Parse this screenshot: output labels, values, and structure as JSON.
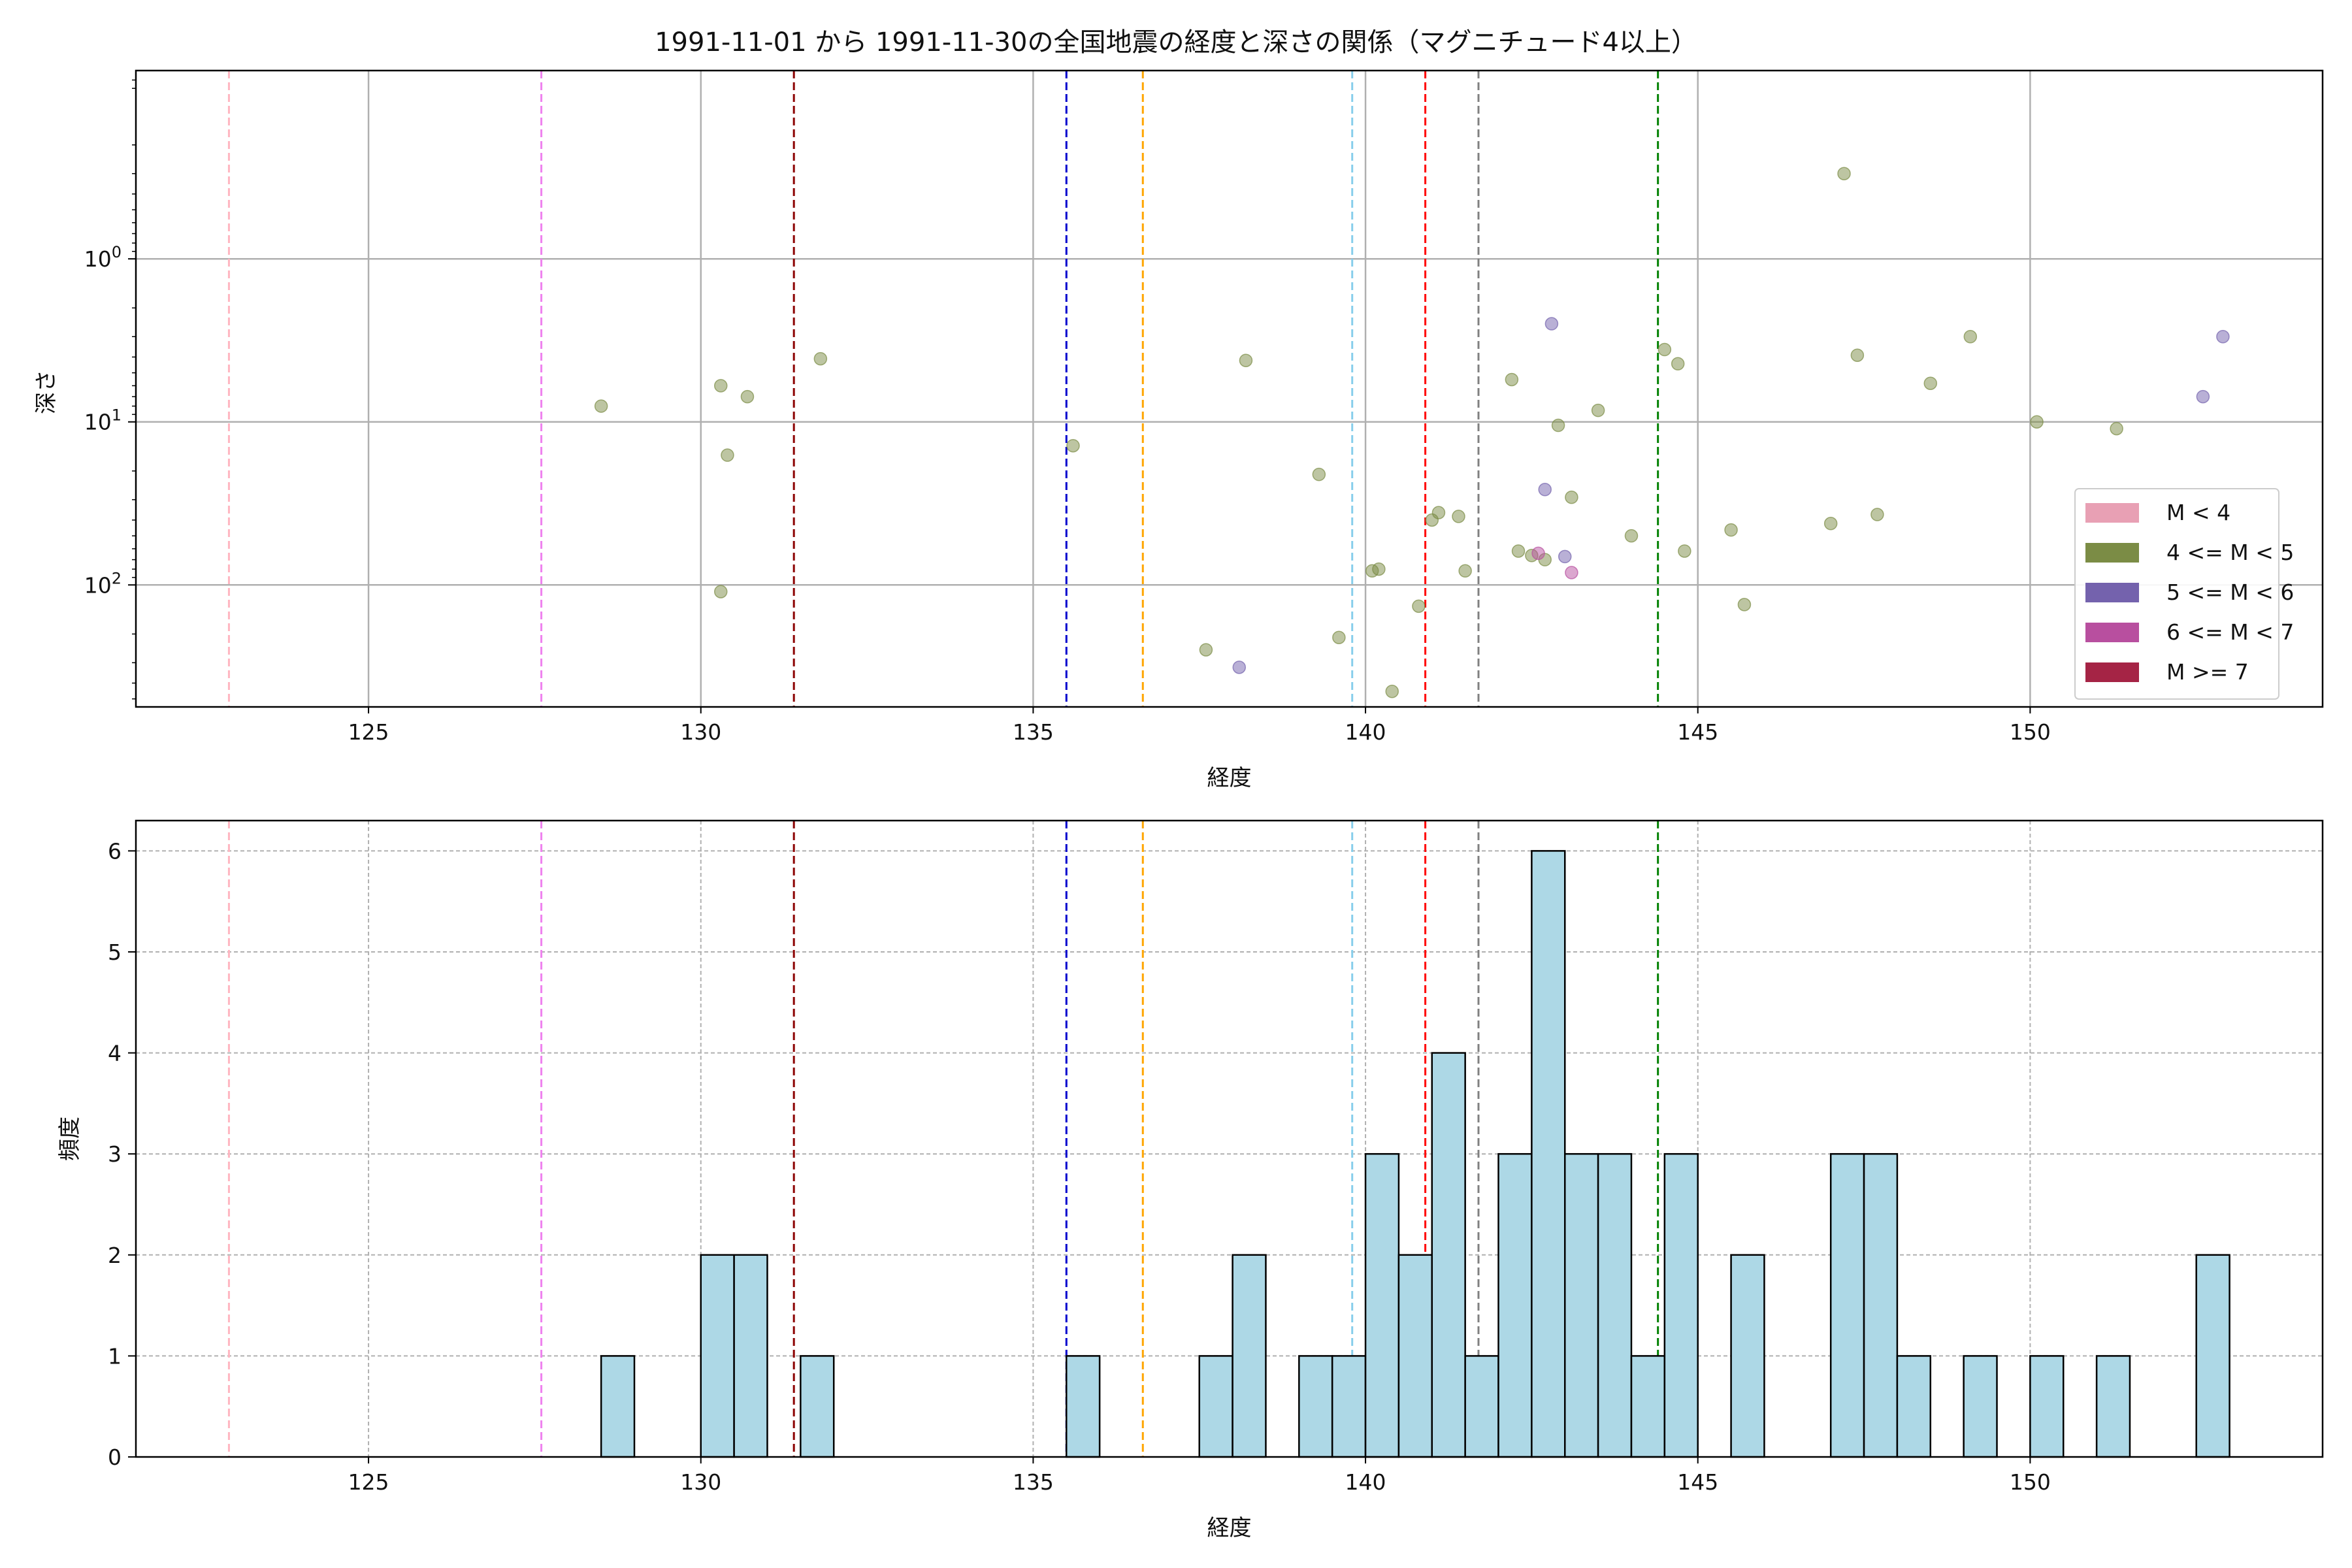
{
  "figure": {
    "title": "1991-11-01 から 1991-11-30の全国地震の経度と深さの関係（マグニチュード4以上）"
  },
  "chart_data": [
    {
      "type": "scatter",
      "xlabel": "経度",
      "ylabel": "深さ",
      "xlim": [
        121.5,
        154.4
      ],
      "ylim_log_base10": [
        0.07,
        560
      ],
      "yscale": "log",
      "y_inverted": true,
      "grid": true,
      "x_ticks": [
        125,
        130,
        135,
        140,
        145,
        150
      ],
      "y_tick_labels": [
        "10^0",
        "10^1",
        "10^2"
      ],
      "legend": {
        "position": "lower-right",
        "entries": [
          {
            "label": "M < 4",
            "color": "#e8a0b4"
          },
          {
            "label": "4 <= M < 5",
            "color": "#7b8c45"
          },
          {
            "label": "5 <= M < 6",
            "color": "#7462ad"
          },
          {
            "label": "6 <= M < 7",
            "color": "#b84f9f"
          },
          {
            "label": "M >= 7",
            "color": "#a52445"
          }
        ]
      },
      "reference_lines": [
        {
          "x": 122.9,
          "color": "#ffb6c1"
        },
        {
          "x": 127.6,
          "color": "#ee82ee"
        },
        {
          "x": 131.4,
          "color": "#8b0000"
        },
        {
          "x": 135.5,
          "color": "#0000cd"
        },
        {
          "x": 136.65,
          "color": "#ffa500"
        },
        {
          "x": 139.8,
          "color": "#87ceeb"
        },
        {
          "x": 140.9,
          "color": "#ff0000"
        },
        {
          "x": 141.7,
          "color": "#808080"
        },
        {
          "x": 144.4,
          "color": "#008000"
        }
      ],
      "series": [
        {
          "magnitude_class": "4 <= M < 5",
          "color": "#7b8c45",
          "points": [
            [
              128.5,
              8
            ],
            [
              130.3,
              6
            ],
            [
              130.4,
              16
            ],
            [
              130.7,
              7
            ],
            [
              131.8,
              4.1
            ],
            [
              130.3,
              110
            ],
            [
              135.6,
              14
            ],
            [
              138.2,
              4.2
            ],
            [
              137.6,
              250
            ],
            [
              139.3,
              21
            ],
            [
              139.6,
              210
            ],
            [
              140.1,
              82
            ],
            [
              140.2,
              80
            ],
            [
              140.4,
              450
            ],
            [
              140.8,
              135
            ],
            [
              141.0,
              40
            ],
            [
              141.1,
              36
            ],
            [
              141.4,
              38
            ],
            [
              141.5,
              82
            ],
            [
              142.2,
              5.5
            ],
            [
              142.3,
              62
            ],
            [
              142.5,
              66
            ],
            [
              142.7,
              70
            ],
            [
              142.9,
              10.5
            ],
            [
              143.1,
              29
            ],
            [
              143.5,
              8.5
            ],
            [
              144.0,
              50
            ],
            [
              144.5,
              3.6
            ],
            [
              144.7,
              4.4
            ],
            [
              144.8,
              62
            ],
            [
              145.5,
              46
            ],
            [
              145.7,
              132
            ],
            [
              147.0,
              42
            ],
            [
              147.2,
              0.3
            ],
            [
              147.4,
              3.9
            ],
            [
              147.7,
              37
            ],
            [
              148.5,
              5.8
            ],
            [
              149.1,
              3.0
            ],
            [
              150.1,
              10
            ],
            [
              151.3,
              11
            ]
          ]
        },
        {
          "magnitude_class": "5 <= M < 6",
          "color": "#7462ad",
          "points": [
            [
              142.8,
              2.5
            ],
            [
              142.7,
              26
            ],
            [
              138.1,
              320
            ],
            [
              143.0,
              67
            ],
            [
              152.6,
              7
            ],
            [
              152.9,
              3.0
            ]
          ]
        },
        {
          "magnitude_class": "6 <= M < 7",
          "color": "#b84f9f",
          "points": [
            [
              142.6,
              64
            ],
            [
              143.1,
              84
            ]
          ]
        }
      ]
    },
    {
      "type": "bar",
      "chart_kind": "histogram",
      "xlabel": "経度",
      "ylabel": "頻度",
      "xlim": [
        121.5,
        154.4
      ],
      "ylim": [
        0,
        6.3
      ],
      "grid": true,
      "bar_color": "#add8e6",
      "x_ticks": [
        125,
        130,
        135,
        140,
        145,
        150
      ],
      "y_ticks": [
        0,
        1,
        2,
        3,
        4,
        5,
        6
      ],
      "bin_width": 0.5,
      "bins": [
        [
          128.5,
          1
        ],
        [
          130.0,
          2
        ],
        [
          130.5,
          2
        ],
        [
          131.5,
          1
        ],
        [
          135.5,
          1
        ],
        [
          137.5,
          1
        ],
        [
          138.0,
          2
        ],
        [
          139.0,
          1
        ],
        [
          139.5,
          1
        ],
        [
          140.0,
          3
        ],
        [
          140.5,
          2
        ],
        [
          141.0,
          4
        ],
        [
          141.5,
          1
        ],
        [
          142.0,
          3
        ],
        [
          142.5,
          6
        ],
        [
          143.0,
          3
        ],
        [
          143.5,
          3
        ],
        [
          144.0,
          1
        ],
        [
          144.5,
          3
        ],
        [
          145.5,
          2
        ],
        [
          147.0,
          3
        ],
        [
          147.5,
          3
        ],
        [
          148.0,
          1
        ],
        [
          149.0,
          1
        ],
        [
          150.0,
          1
        ],
        [
          151.0,
          1
        ],
        [
          152.5,
          2
        ]
      ],
      "reference_lines": [
        {
          "x": 122.9,
          "color": "#ffb6c1"
        },
        {
          "x": 127.6,
          "color": "#ee82ee"
        },
        {
          "x": 131.4,
          "color": "#8b0000"
        },
        {
          "x": 135.5,
          "color": "#0000cd"
        },
        {
          "x": 136.65,
          "color": "#ffa500"
        },
        {
          "x": 139.8,
          "color": "#87ceeb"
        },
        {
          "x": 140.9,
          "color": "#ff0000"
        },
        {
          "x": 141.7,
          "color": "#808080"
        },
        {
          "x": 144.4,
          "color": "#008000"
        }
      ]
    }
  ]
}
